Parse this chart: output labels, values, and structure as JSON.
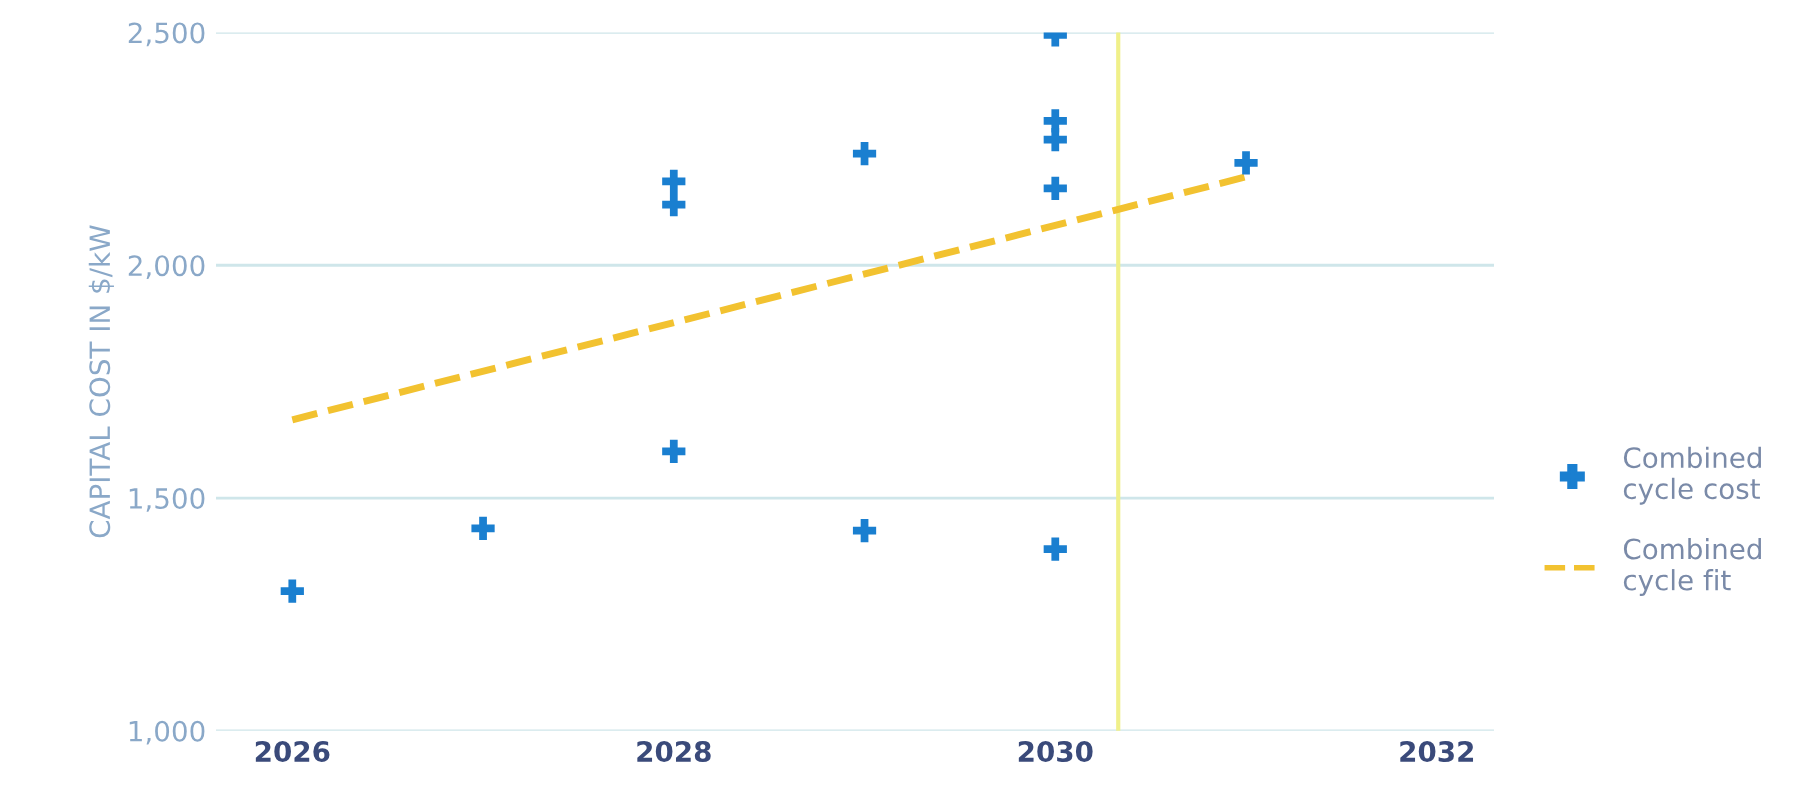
{
  "chart_data": {
    "type": "scatter",
    "ylabel": "CAPITAL COST IN $/kW",
    "xlim": [
      2025.6,
      2032.3
    ],
    "xticks": [
      2026,
      2028,
      2030,
      2032
    ],
    "ylim": [
      1000,
      2500
    ],
    "yticks": [
      {
        "value": 1000,
        "label": "1,000"
      },
      {
        "value": 1500,
        "label": "1,500"
      },
      {
        "value": 2000,
        "label": "2,000"
      },
      {
        "value": 2500,
        "label": "2,500"
      }
    ],
    "grid": "y",
    "legend": "right",
    "series": [
      {
        "name": "Combined cycle cost",
        "marker": "cross",
        "color": "#1a7fd0",
        "x": [
          2026,
          2027,
          2028,
          2028,
          2028,
          2029,
          2029,
          2030,
          2030,
          2030,
          2030,
          2030,
          2031
        ],
        "values": [
          1300,
          1435,
          2180,
          2130,
          1600,
          2240,
          1430,
          2495,
          2310,
          2270,
          2165,
          1390,
          2220
        ]
      },
      {
        "name": "Combined cycle fit",
        "type": "line",
        "line_style": "dashed",
        "color": "#f2c230",
        "x": [
          2026,
          2031
        ],
        "values": [
          1668,
          2190
        ]
      }
    ],
    "ref_lines": [
      {
        "axis": "x",
        "value": 2030.33,
        "label": null,
        "color": "#f0f08a"
      }
    ]
  }
}
